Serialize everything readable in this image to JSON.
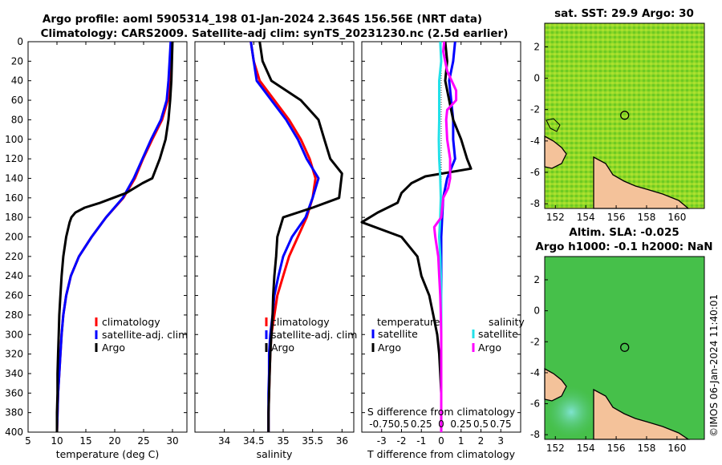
{
  "colors": {
    "climatology": "#ff0000",
    "satellite": "#0000ff",
    "argo": "#000000",
    "sat_salinity": "#22e0e8",
    "argo_salinity": "#ff00ff",
    "map_bg": "#62c81e",
    "land": "#f4c29a"
  },
  "titles": {
    "line1": "Argo profile: aoml 5905314_198 01-Jan-2024 2.364S 156.56E (NRT data)",
    "line2": "Climatology: CARS2009. Satellite-adj clim: synTS_20231230.nc (2.5d earlier)",
    "map_top": "sat. SST: 29.9 Argo: 30",
    "map_bottom_line1": "Altim. SLA: -0.025",
    "map_bottom_line2": "Argo h1000: -0.1 h2000: NaN",
    "credit": "©IMOS 06-Jan-2024 11:40:01"
  },
  "depth_ticks": [
    "0",
    "20",
    "40",
    "60",
    "80",
    "100",
    "120",
    "140",
    "160",
    "180",
    "200",
    "220",
    "240",
    "260",
    "280",
    "300",
    "320",
    "340",
    "360",
    "380",
    "400"
  ],
  "legend1": {
    "climatology": "climatology",
    "satellite": "satellite-adj. clim",
    "argo": "Argo"
  },
  "legend2": {
    "climatology": "climatology",
    "satellite": "satellite-adj. clim",
    "argo": "Argo"
  },
  "legend3": {
    "temp_header": "temperature",
    "temp_sat": "satellite",
    "temp_argo": "Argo",
    "sal_header": "salinity",
    "sal_sat": "satellite",
    "sal_argo": "Argo",
    "s_axis_label": "S difference from climatology",
    "s_ticks": [
      "-0.75",
      "0.5",
      "0.25",
      "0",
      "0.25",
      "0.5",
      "0.75"
    ]
  },
  "chart_data": [
    {
      "type": "line",
      "xlabel": "temperature (deg C)",
      "ylabel": "depth",
      "xlim": [
        5,
        32.5
      ],
      "ylim": [
        400,
        0
      ],
      "xticks": [
        "5",
        "10",
        "15",
        "20",
        "25",
        "30"
      ],
      "series": [
        {
          "name": "climatology",
          "depth": [
            0,
            20,
            40,
            60,
            80,
            100,
            120,
            140,
            160,
            180,
            200,
            220,
            240,
            260,
            280,
            300,
            320,
            340,
            360,
            380,
            400
          ],
          "values": [
            29.9,
            29.8,
            29.6,
            29.2,
            28.2,
            26.5,
            24.9,
            23.5,
            21.5,
            18.5,
            16.0,
            13.8,
            12.4,
            11.6,
            11.1,
            10.8,
            10.6,
            10.4,
            10.2,
            10.1,
            10.0
          ]
        },
        {
          "name": "satellite-adj. clim",
          "depth": [
            0,
            20,
            40,
            60,
            80,
            100,
            120,
            140,
            160,
            180,
            200,
            220,
            240,
            260,
            280,
            300,
            320,
            340,
            360,
            380,
            400
          ],
          "values": [
            29.7,
            29.5,
            29.3,
            29.0,
            28.0,
            26.3,
            24.8,
            23.3,
            21.4,
            18.5,
            16.0,
            13.8,
            12.4,
            11.6,
            11.1,
            10.8,
            10.6,
            10.4,
            10.2,
            10.1,
            10.0
          ]
        },
        {
          "name": "Argo",
          "depth": [
            0,
            20,
            40,
            60,
            80,
            100,
            120,
            140,
            145,
            155,
            165,
            170,
            175,
            180,
            185,
            200,
            220,
            240,
            260,
            280,
            300,
            320,
            340,
            360,
            380,
            400
          ],
          "values": [
            30.0,
            29.9,
            29.8,
            29.6,
            29.3,
            28.8,
            27.8,
            26.5,
            24.8,
            22.0,
            17.5,
            14.8,
            13.2,
            12.5,
            12.2,
            11.6,
            11.1,
            10.8,
            10.6,
            10.4,
            10.3,
            10.2,
            10.1,
            10.1,
            10.0,
            10.0
          ]
        }
      ]
    },
    {
      "type": "line",
      "xlabel": "salinity",
      "ylabel": "depth",
      "xlim": [
        33.5,
        36.2
      ],
      "ylim": [
        400,
        0
      ],
      "xticks": [
        "34",
        "34.5",
        "35",
        "35.5",
        "36"
      ],
      "series": [
        {
          "name": "climatology",
          "depth": [
            0,
            20,
            40,
            60,
            80,
            100,
            120,
            140,
            160,
            180,
            200,
            220,
            240,
            260,
            280,
            300,
            320,
            340,
            360,
            380,
            400
          ],
          "values": [
            34.45,
            34.5,
            34.6,
            34.85,
            35.1,
            35.3,
            35.45,
            35.55,
            35.5,
            35.4,
            35.25,
            35.1,
            35.0,
            34.9,
            34.85,
            34.8,
            34.78,
            34.77,
            34.76,
            34.75,
            34.75
          ]
        },
        {
          "name": "satellite-adj. clim",
          "depth": [
            0,
            20,
            40,
            60,
            80,
            100,
            120,
            140,
            160,
            180,
            200,
            220,
            240,
            260,
            280,
            300,
            320,
            340,
            360,
            380,
            400
          ],
          "values": [
            34.45,
            34.5,
            34.55,
            34.8,
            35.05,
            35.25,
            35.4,
            35.6,
            35.5,
            35.38,
            35.15,
            35.0,
            34.92,
            34.85,
            34.82,
            34.78,
            34.76,
            34.76,
            34.75,
            34.75,
            34.75
          ]
        },
        {
          "name": "Argo",
          "depth": [
            0,
            20,
            40,
            60,
            80,
            100,
            120,
            135,
            160,
            170,
            180,
            190,
            200,
            220,
            240,
            260,
            280,
            300,
            320,
            340,
            360,
            380,
            400
          ],
          "values": [
            34.6,
            34.65,
            34.8,
            35.3,
            35.6,
            35.7,
            35.8,
            36.0,
            35.95,
            35.5,
            35.0,
            34.95,
            34.9,
            34.88,
            34.85,
            34.83,
            34.82,
            34.8,
            34.78,
            34.77,
            34.76,
            34.75,
            34.75
          ]
        }
      ]
    },
    {
      "type": "line",
      "xlabel": "T difference from climatology",
      "ylabel": "depth",
      "xlim": [
        -4,
        4
      ],
      "ylim": [
        400,
        0
      ],
      "xticks": [
        "-3",
        "-2",
        "-1",
        "0",
        "1",
        "2",
        "3"
      ],
      "series": [
        {
          "name": "temperature satellite",
          "depth": [
            0,
            20,
            40,
            60,
            80,
            100,
            120,
            140,
            160,
            180,
            200,
            220,
            240,
            260,
            280,
            300,
            320,
            340,
            360,
            380,
            400
          ],
          "values": [
            0.7,
            0.6,
            0.4,
            0.5,
            0.6,
            0.6,
            0.7,
            0.3,
            0.1,
            0.05,
            0.0,
            0.0,
            0.0,
            0.0,
            0.0,
            0.0,
            0.0,
            0.0,
            0.0,
            0.0,
            0.0
          ]
        },
        {
          "name": "temperature Argo",
          "depth": [
            0,
            20,
            40,
            60,
            80,
            100,
            120,
            130,
            138,
            145,
            155,
            165,
            175,
            185,
            200,
            220,
            240,
            260,
            280,
            300,
            320,
            340,
            360,
            380,
            400
          ],
          "values": [
            0.2,
            0.3,
            0.2,
            0.4,
            0.6,
            1.0,
            1.3,
            1.5,
            -0.8,
            -1.5,
            -2.0,
            -2.2,
            -3.2,
            -4.0,
            -2.0,
            -1.2,
            -1.0,
            -0.6,
            -0.4,
            -0.2,
            -0.1,
            -0.05,
            0.0,
            0.0,
            0.0
          ]
        },
        {
          "name": "salinity satellite",
          "depth": [
            0,
            20,
            40,
            60,
            80,
            100,
            120,
            140,
            160,
            180,
            200,
            220,
            240,
            260,
            280,
            300,
            320,
            340,
            360,
            380,
            400
          ],
          "values": [
            -0.05,
            0.0,
            -0.1,
            -0.1,
            -0.1,
            -0.12,
            -0.1,
            -0.05,
            -0.02,
            -0.05,
            -0.1,
            -0.05,
            -0.02,
            0.0,
            0.0,
            0.0,
            0.0,
            0.0,
            0.0,
            0.0,
            0.0
          ]
        },
        {
          "name": "salinity Argo",
          "depth": [
            0,
            10,
            30,
            50,
            60,
            70,
            80,
            100,
            120,
            140,
            150,
            160,
            170,
            180,
            190,
            200,
            220,
            240,
            260,
            280,
            300,
            320,
            340,
            360,
            380,
            400
          ],
          "values": [
            0.15,
            0.1,
            0.3,
            0.75,
            0.75,
            0.3,
            0.25,
            0.3,
            0.45,
            0.45,
            0.35,
            0.1,
            0.05,
            0.0,
            -0.35,
            -0.3,
            -0.15,
            -0.1,
            -0.05,
            -0.02,
            0.0,
            0.0,
            0.0,
            0.0,
            0.0,
            0.0
          ]
        }
      ]
    },
    {
      "type": "heatmap",
      "title": "sat. SST: 29.9 Argo: 30",
      "xlim": [
        151.3,
        161.8
      ],
      "ylim": [
        -8.3,
        3.5
      ],
      "xticks": [
        "152",
        "154",
        "156",
        "158",
        "160"
      ],
      "yticks": [
        "-8",
        "-6",
        "-4",
        "-2",
        "0",
        "2"
      ],
      "argo_position": [
        156.56,
        -2.364
      ]
    },
    {
      "type": "heatmap",
      "title": "Altim. SLA: -0.025 / Argo h1000: -0.1 h2000: NaN",
      "xlim": [
        151.3,
        161.8
      ],
      "ylim": [
        -8.3,
        3.5
      ],
      "xticks": [
        "152",
        "154",
        "156",
        "158",
        "160"
      ],
      "yticks": [
        "-8",
        "-6",
        "-4",
        "-2",
        "0",
        "2"
      ],
      "argo_position": [
        156.56,
        -2.364
      ]
    }
  ]
}
